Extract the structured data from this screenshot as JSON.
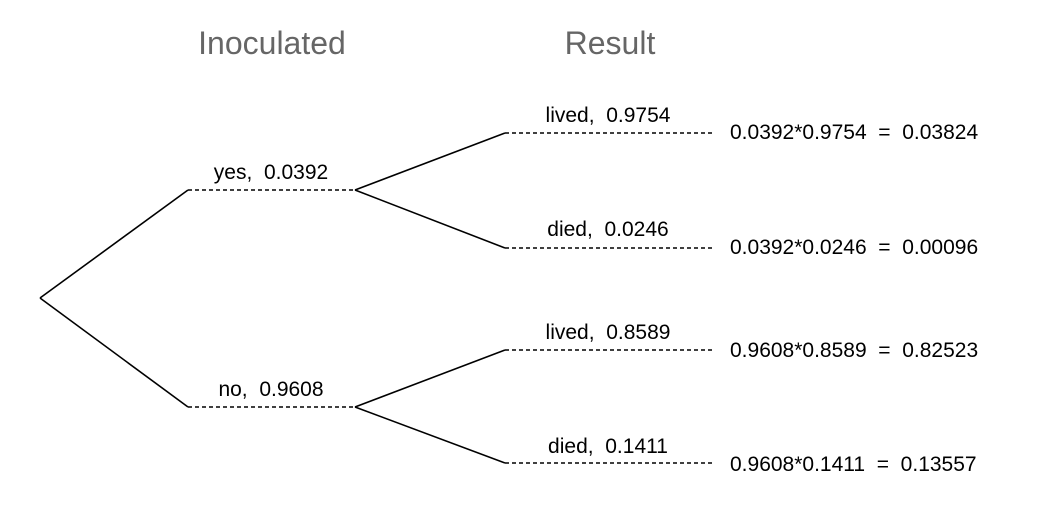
{
  "headers": [
    "Inoculated",
    "Result"
  ],
  "first_level": [
    {
      "label": "yes,  0.0392",
      "branches": [
        {
          "label": "lived,  0.9754",
          "result": "0.0392*0.9754  =  0.03824"
        },
        {
          "label": "died,  0.0246",
          "result": "0.0392*0.0246  =  0.00096"
        }
      ]
    },
    {
      "label": "no,  0.9608",
      "branches": [
        {
          "label": "lived,  0.8589",
          "result": "0.9608*0.8589  =  0.82523"
        },
        {
          "label": "died,  0.1411",
          "result": "0.9608*0.1411  =  0.13557"
        }
      ]
    }
  ]
}
